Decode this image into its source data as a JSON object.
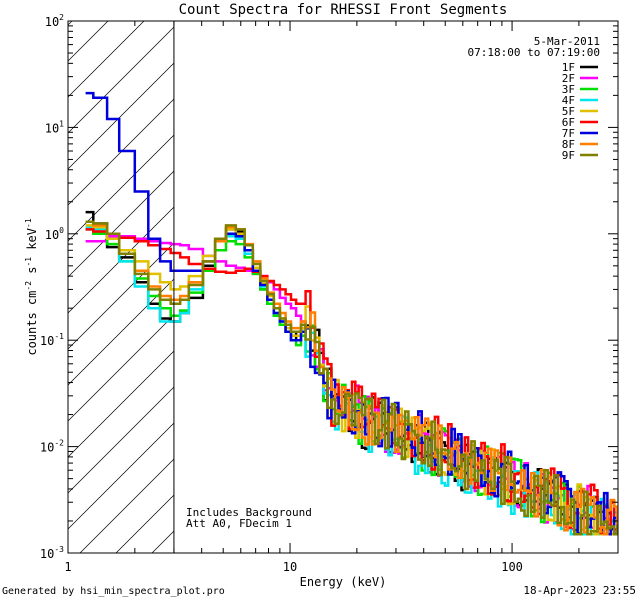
{
  "chart_data": {
    "type": "line",
    "title": "Count Spectra for RHESSI Front Segments",
    "xlabel": "Energy (keV)",
    "ylabel": "counts cm",
    "ylabel_sup1": "-2",
    "ylabel_mid": " s",
    "ylabel_sup2": "-1",
    "ylabel_end": " keV",
    "ylabel_sup3": "-1",
    "xscale": "log",
    "yscale": "log",
    "xlim": [
      1,
      300
    ],
    "ylim": [
      0.001,
      100
    ],
    "x_ticks": [
      {
        "value": 1,
        "label": "1"
      },
      {
        "value": 10,
        "label": "10"
      },
      {
        "value": 100,
        "label": "100"
      }
    ],
    "y_ticks": [
      {
        "value": 0.001,
        "base": "10",
        "exp": "-3"
      },
      {
        "value": 0.01,
        "base": "10",
        "exp": "-2"
      },
      {
        "value": 0.1,
        "base": "10",
        "exp": "-1"
      },
      {
        "value": 1,
        "base": "10",
        "exp": "0"
      },
      {
        "value": 10,
        "base": "10",
        "exp": "1"
      },
      {
        "value": 100,
        "base": "10",
        "exp": "2"
      }
    ],
    "attenuator_cutoff_keV": 3,
    "date_label": "5-Mar-2011",
    "time_label": "07:18:00 to 07:19:00",
    "annotations": [
      "Includes Background",
      "Att A0, FDecim 1"
    ],
    "footer_left": "Generated by hsi_min_spectra_plot.pro",
    "footer_right": "18-Apr-2023 23:55",
    "series": [
      {
        "name": "1F",
        "color": "#000000",
        "low": [
          1.6,
          1.25,
          0.75,
          0.6,
          0.35,
          0.22,
          0.16,
          0.15,
          0.18
        ],
        "mid": [
          0.25,
          0.5,
          0.9,
          1.1,
          1.05,
          0.7,
          0.45,
          0.3,
          0.22,
          0.17,
          0.14,
          0.12,
          0.1,
          0.12,
          0.13
        ],
        "noise_seed": 1,
        "tail_bias": 0.95
      },
      {
        "name": "2F",
        "color": "#ff00ff",
        "low": [
          0.85,
          0.85,
          0.95,
          0.95,
          0.9,
          0.85,
          0.82,
          0.8,
          0.78
        ],
        "mid": [
          0.72,
          0.62,
          0.55,
          0.5,
          0.48,
          0.45,
          0.42,
          0.4,
          0.35,
          0.3,
          0.25,
          0.22,
          0.2,
          0.17,
          0.15
        ],
        "noise_seed": 2,
        "tail_bias": 1.05
      },
      {
        "name": "3F",
        "color": "#00e000",
        "low": [
          1.1,
          1.0,
          0.8,
          0.55,
          0.38,
          0.26,
          0.2,
          0.17,
          0.19
        ],
        "mid": [
          0.28,
          0.45,
          0.7,
          0.85,
          0.8,
          0.6,
          0.42,
          0.3,
          0.22,
          0.17,
          0.14,
          0.12,
          0.1,
          0.09,
          0.11
        ],
        "noise_seed": 3,
        "tail_bias": 1.0
      },
      {
        "name": "4F",
        "color": "#00e5ee",
        "low": [
          1.15,
          1.1,
          0.9,
          0.55,
          0.32,
          0.2,
          0.15,
          0.15,
          0.18
        ],
        "mid": [
          0.3,
          0.55,
          0.85,
          0.95,
          0.9,
          0.65,
          0.45,
          0.32,
          0.24,
          0.18,
          0.15,
          0.12,
          0.1,
          0.1,
          0.12
        ],
        "noise_seed": 4,
        "tail_bias": 0.9
      },
      {
        "name": "5F",
        "color": "#e0c000",
        "low": [
          1.2,
          1.15,
          0.9,
          0.7,
          0.55,
          0.42,
          0.35,
          0.3,
          0.32
        ],
        "mid": [
          0.4,
          0.62,
          0.9,
          1.1,
          1.0,
          0.7,
          0.48,
          0.34,
          0.26,
          0.2,
          0.16,
          0.13,
          0.11,
          0.11,
          0.13
        ],
        "noise_seed": 5,
        "tail_bias": 1.0
      },
      {
        "name": "6F",
        "color": "#ff0000",
        "low": [
          1.1,
          1.05,
          1.0,
          0.92,
          0.85,
          0.78,
          0.72,
          0.66,
          0.6
        ],
        "mid": [
          0.52,
          0.47,
          0.44,
          0.43,
          0.45,
          0.47,
          0.44,
          0.4,
          0.36,
          0.33,
          0.3,
          0.27,
          0.24,
          0.22,
          0.22
        ],
        "noise_seed": 6,
        "tail_bias": 1.15
      },
      {
        "name": "7F",
        "color": "#0000dd",
        "low": [
          21,
          19,
          12,
          6,
          2.5,
          0.9,
          0.55,
          0.45,
          0.45
        ],
        "mid": [
          0.45,
          0.55,
          0.85,
          1.0,
          0.95,
          0.7,
          0.45,
          0.33,
          0.24,
          0.18,
          0.15,
          0.12,
          0.1,
          0.1,
          0.12
        ],
        "noise_seed": 7,
        "tail_bias": 1.1
      },
      {
        "name": "8F",
        "color": "#ff8000",
        "low": [
          1.3,
          1.2,
          1.0,
          0.65,
          0.45,
          0.32,
          0.26,
          0.24,
          0.26
        ],
        "mid": [
          0.35,
          0.55,
          0.85,
          1.15,
          1.1,
          0.8,
          0.55,
          0.38,
          0.28,
          0.22,
          0.18,
          0.15,
          0.13,
          0.13,
          0.15
        ],
        "noise_seed": 8,
        "tail_bias": 1.05
      },
      {
        "name": "9F",
        "color": "#808000",
        "low": [
          1.3,
          1.25,
          1.0,
          0.65,
          0.42,
          0.3,
          0.24,
          0.22,
          0.24
        ],
        "mid": [
          0.33,
          0.55,
          0.9,
          1.2,
          1.1,
          0.78,
          0.52,
          0.36,
          0.27,
          0.2,
          0.16,
          0.14,
          0.12,
          0.12,
          0.14
        ],
        "noise_seed": 9,
        "tail_bias": 1.0
      }
    ]
  }
}
